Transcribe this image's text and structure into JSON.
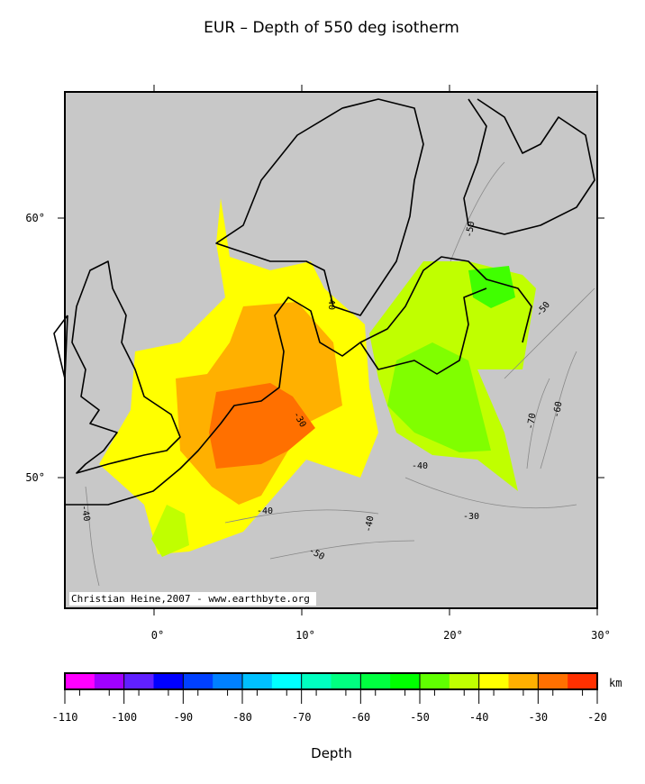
{
  "title": "EUR – Depth of 550 deg isotherm",
  "map": {
    "lat_ticks": [
      {
        "value": 60,
        "label": "60°"
      },
      {
        "value": 50,
        "label": "50°"
      }
    ],
    "lon_ticks": [
      {
        "value": 0,
        "label": "0°"
      },
      {
        "value": 10,
        "label": "10°"
      },
      {
        "value": 20,
        "label": "20°"
      },
      {
        "value": 30,
        "label": "30°"
      }
    ],
    "credit": "Christian Heine,2007 - www.earthbyte.org",
    "contour_labels": [
      "-50",
      "-40",
      "-50",
      "-60",
      "-70",
      "-30",
      "-40",
      "-30",
      "-40",
      "-40",
      "-50",
      "-40"
    ]
  },
  "colorbar": {
    "ticks": [
      -110,
      -100,
      -90,
      -80,
      -70,
      -60,
      -50,
      -40,
      -30,
      -20
    ],
    "unit": "km",
    "label": "Depth",
    "colors": [
      "#ff00ff",
      "#a000ff",
      "#6020ff",
      "#0000ff",
      "#0040ff",
      "#0080ff",
      "#00c0ff",
      "#00ffff",
      "#00ffc0",
      "#00ff80",
      "#00ff40",
      "#00ff00",
      "#60ff00",
      "#c0ff00",
      "#ffff00",
      "#ffb000",
      "#ff7000",
      "#ff3000"
    ]
  }
}
